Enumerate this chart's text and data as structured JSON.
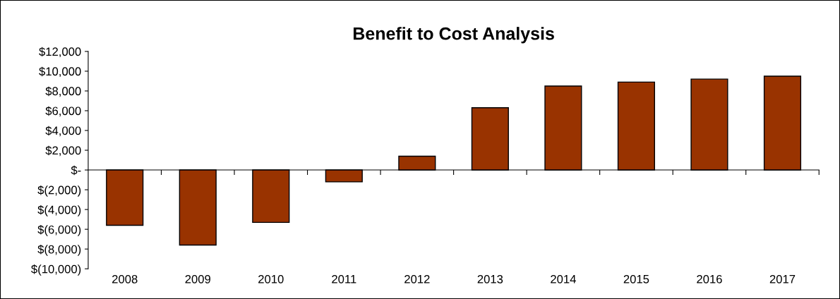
{
  "chart_data": {
    "type": "bar",
    "title": "Benefit to Cost Analysis",
    "categories": [
      "2008",
      "2009",
      "2010",
      "2011",
      "2012",
      "2013",
      "2014",
      "2015",
      "2016",
      "2017"
    ],
    "values": [
      -5600,
      -7600,
      -5300,
      -1200,
      1400,
      6300,
      8500,
      8900,
      9200,
      9500
    ],
    "color": "#993300",
    "ylim": [
      -10000,
      12000
    ],
    "yticks": [
      {
        "value": -10000,
        "label": "$(10,000)"
      },
      {
        "value": -8000,
        "label": "$(8,000)"
      },
      {
        "value": -6000,
        "label": "$(6,000)"
      },
      {
        "value": -4000,
        "label": "$(4,000)"
      },
      {
        "value": -2000,
        "label": "$(2,000)"
      },
      {
        "value": 0,
        "label": "$-"
      },
      {
        "value": 2000,
        "label": "$2,000"
      },
      {
        "value": 4000,
        "label": "$4,000"
      },
      {
        "value": 6000,
        "label": "$6,000"
      },
      {
        "value": 8000,
        "label": "$8,000"
      },
      {
        "value": 10000,
        "label": "$10,000"
      },
      {
        "value": 12000,
        "label": "$12,000"
      }
    ],
    "legend": false
  }
}
